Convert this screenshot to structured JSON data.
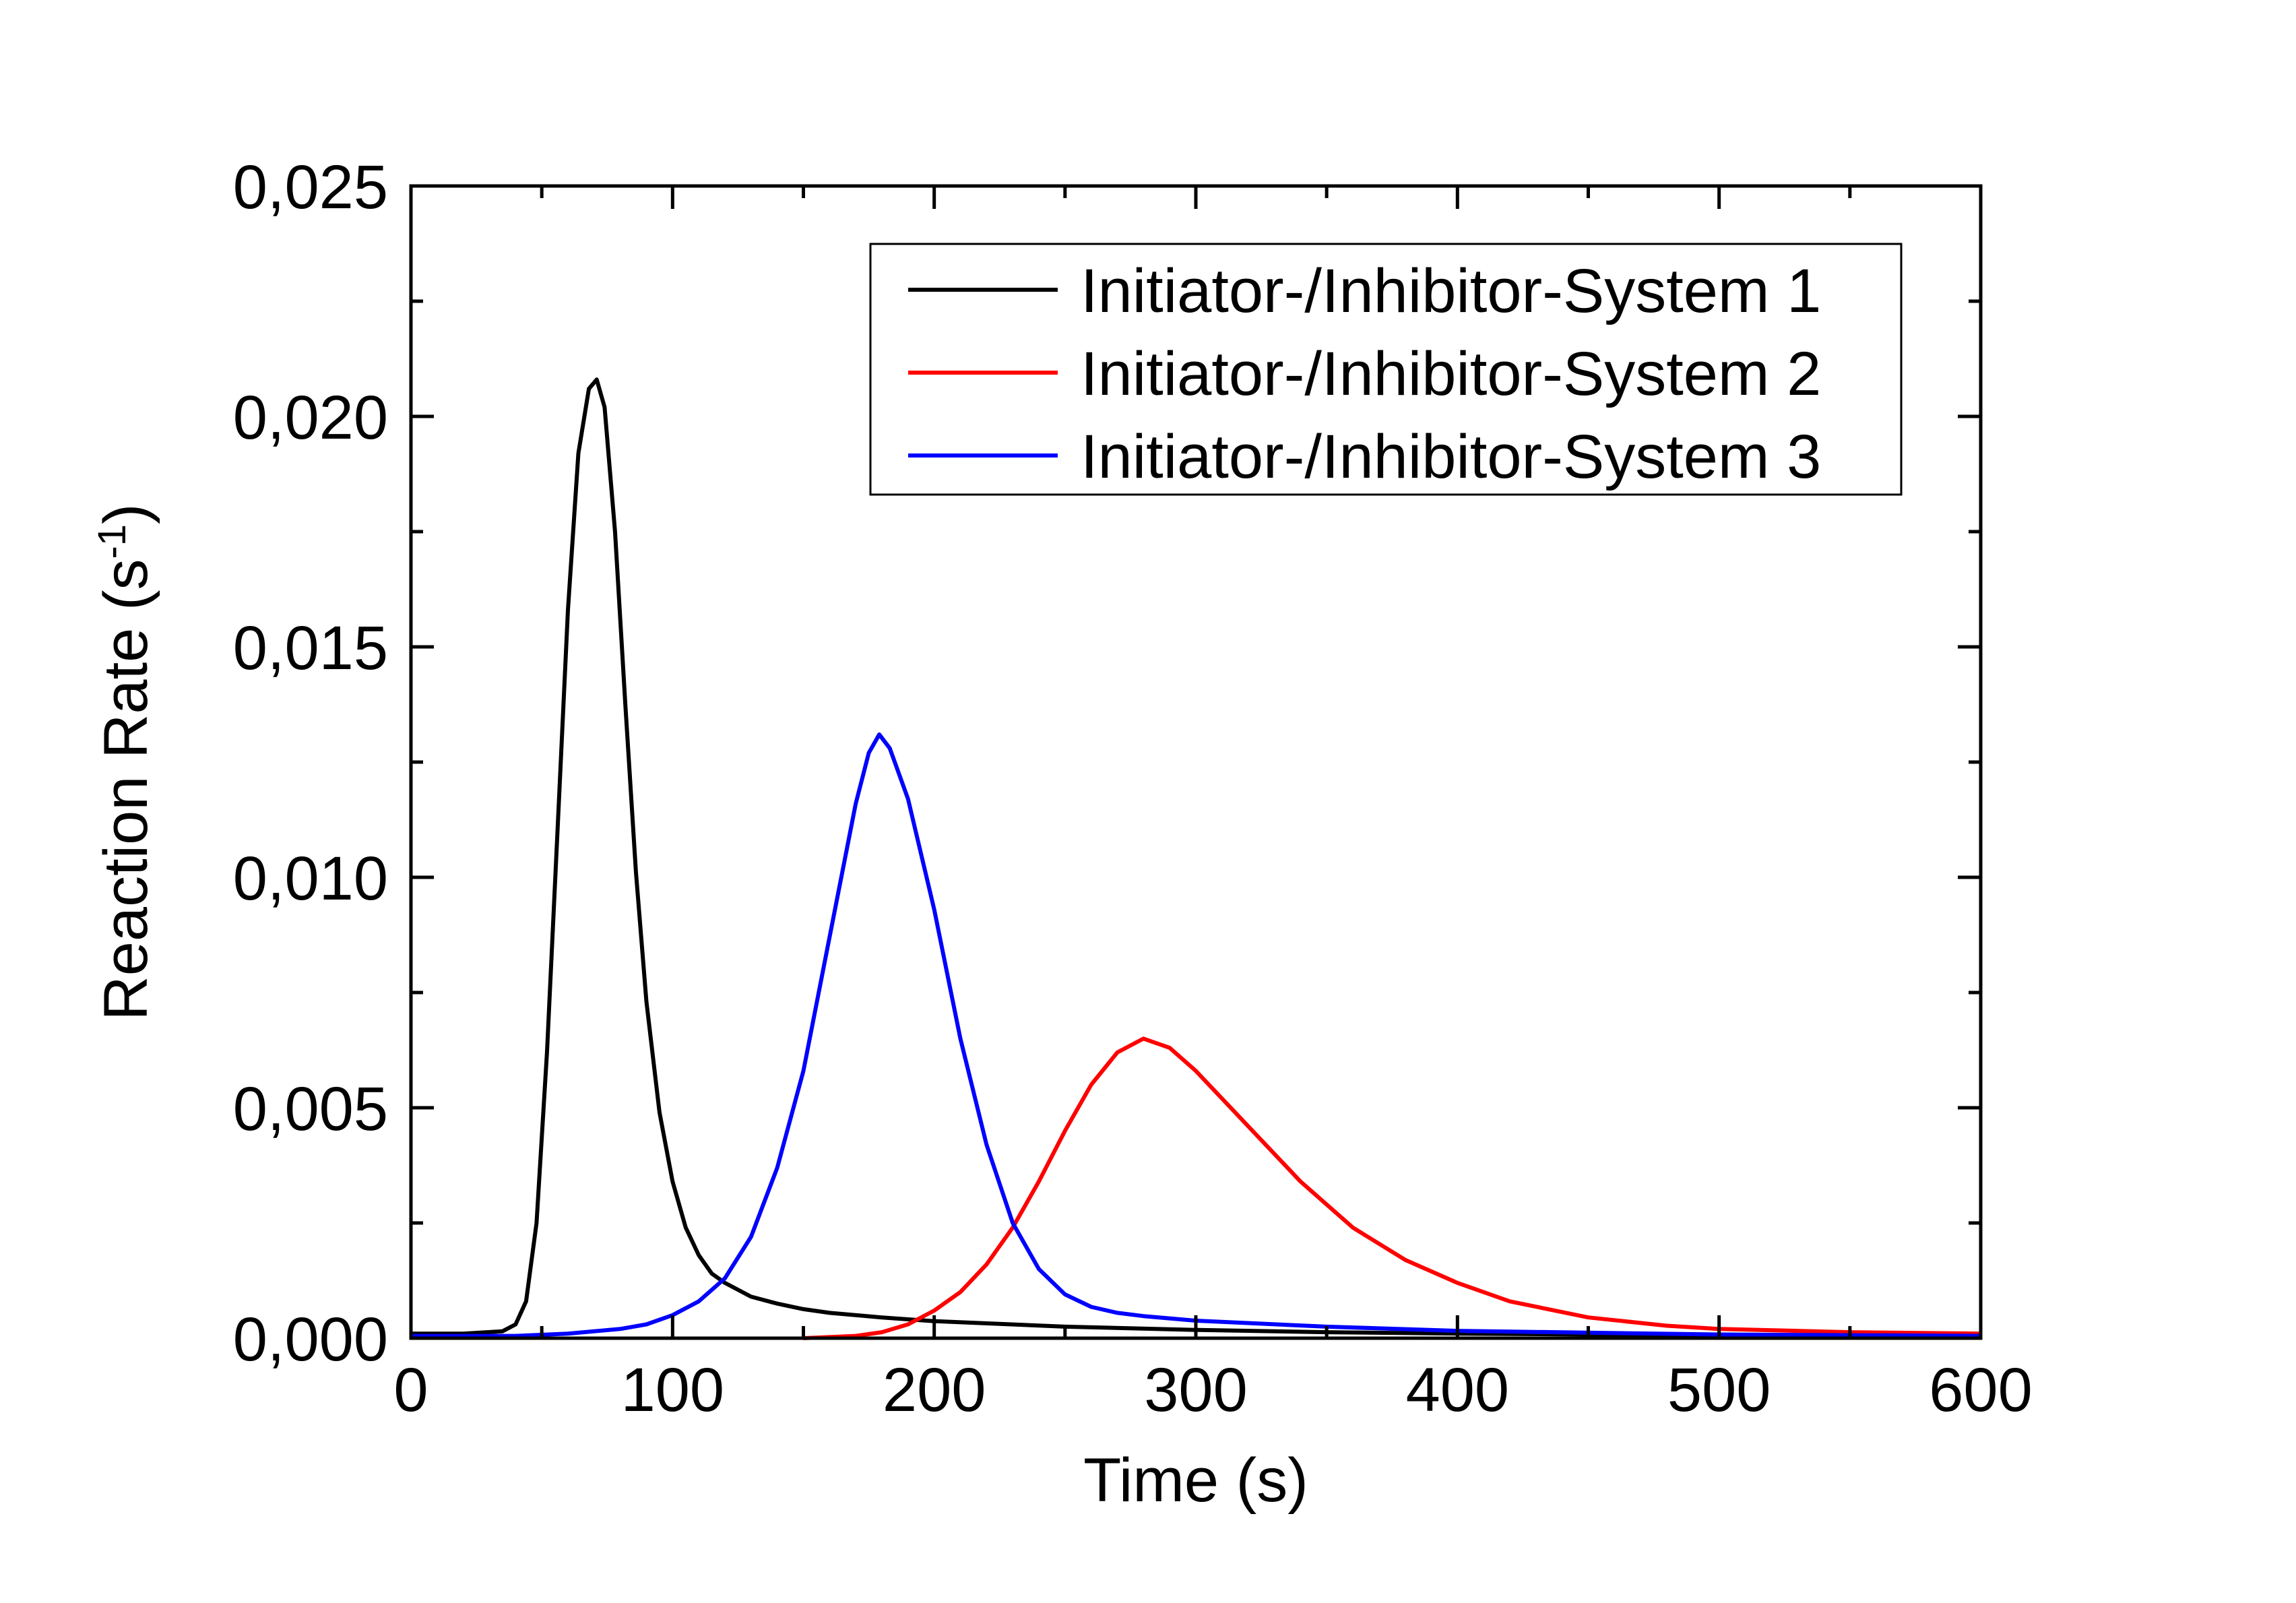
{
  "chart_data": {
    "type": "line",
    "title": "",
    "xlabel": "Time (s)",
    "ylabel": {
      "main": "Reaction Rate (s",
      "sup": "-1",
      "close": ")"
    },
    "xlim": [
      0,
      600
    ],
    "ylim": [
      0,
      0.025
    ],
    "x_ticks": [
      "0",
      "100",
      "200",
      "300",
      "400",
      "500",
      "600"
    ],
    "y_ticks": [
      "0,000",
      "0,005",
      "0,010",
      "0,015",
      "0,020",
      "0,025"
    ],
    "grid": false,
    "legend_position": "top-right",
    "series": [
      {
        "name": "Initiator-/Inhibitor-System 1",
        "color": "#000000",
        "x": [
          0,
          20,
          35,
          40,
          44,
          48,
          52,
          56,
          60,
          64,
          68,
          71,
          74,
          78,
          82,
          86,
          90,
          95,
          100,
          105,
          110,
          115,
          120,
          130,
          140,
          150,
          160,
          180,
          200,
          250,
          300,
          350,
          400,
          500,
          600
        ],
        "y": [
          0.0001,
          0.0001,
          0.00015,
          0.0003,
          0.0008,
          0.0025,
          0.0062,
          0.011,
          0.0158,
          0.0192,
          0.0206,
          0.0208,
          0.0202,
          0.0175,
          0.0137,
          0.0101,
          0.0073,
          0.0049,
          0.0034,
          0.0024,
          0.0018,
          0.0014,
          0.0012,
          0.0009,
          0.00075,
          0.00063,
          0.00055,
          0.00045,
          0.00037,
          0.00025,
          0.00018,
          0.00013,
          0.0001,
          6e-05,
          4e-05
        ]
      },
      {
        "name": "Initiator-/Inhibitor-System 2",
        "color": "#ff0000",
        "x": [
          150,
          170,
          180,
          190,
          200,
          210,
          220,
          230,
          240,
          250,
          260,
          270,
          280,
          290,
          300,
          320,
          340,
          360,
          380,
          400,
          420,
          450,
          480,
          500,
          550,
          600
        ],
        "y": [
          0.0,
          5e-05,
          0.00013,
          0.0003,
          0.0006,
          0.001,
          0.0016,
          0.0024,
          0.0034,
          0.0045,
          0.0055,
          0.0062,
          0.0065,
          0.0063,
          0.0058,
          0.0046,
          0.0034,
          0.0024,
          0.0017,
          0.0012,
          0.0008,
          0.00045,
          0.00027,
          0.0002,
          0.00013,
          0.0001
        ]
      },
      {
        "name": "Initiator-/Inhibitor-System 3",
        "color": "#0000ff",
        "x": [
          0,
          40,
          60,
          80,
          90,
          100,
          110,
          120,
          130,
          140,
          150,
          160,
          170,
          175,
          179,
          183,
          190,
          200,
          210,
          220,
          230,
          240,
          250,
          260,
          270,
          280,
          300,
          350,
          400,
          500,
          600
        ],
        "y": [
          5e-05,
          5e-05,
          0.0001,
          0.0002,
          0.0003,
          0.0005,
          0.0008,
          0.0013,
          0.0022,
          0.0037,
          0.0058,
          0.0087,
          0.0116,
          0.0127,
          0.0131,
          0.0128,
          0.0117,
          0.0093,
          0.0065,
          0.0042,
          0.0025,
          0.0015,
          0.00095,
          0.00068,
          0.00055,
          0.00048,
          0.00038,
          0.00025,
          0.00016,
          8e-05,
          5e-05
        ]
      }
    ]
  }
}
